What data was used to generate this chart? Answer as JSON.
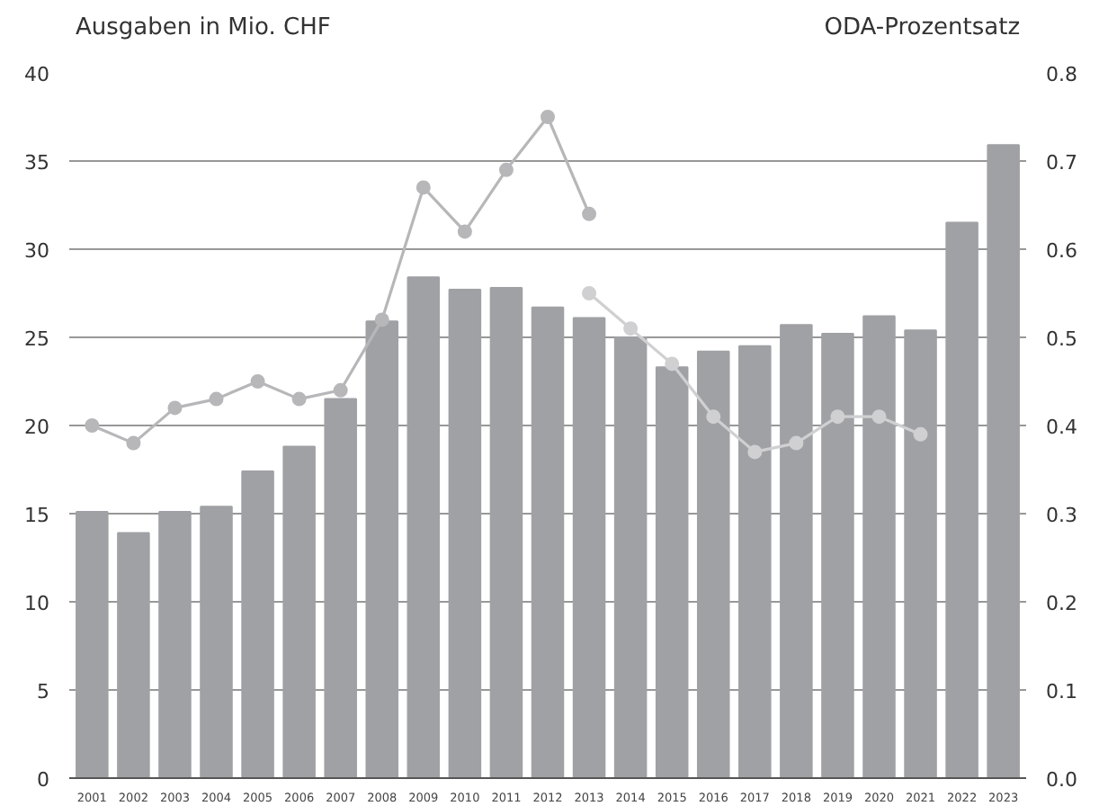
{
  "chart_data": {
    "type": "bar",
    "ylabel": "Ausgaben in Mio. CHF",
    "y2label": "ODA-Prozentsatz",
    "categories": [
      "2001",
      "2002",
      "2003",
      "2004",
      "2005",
      "2006",
      "2007",
      "2008",
      "2009",
      "2010",
      "2011",
      "2012",
      "2013",
      "2014",
      "2015",
      "2016",
      "2017",
      "2018",
      "2019",
      "2020",
      "2021",
      "2022",
      "2023"
    ],
    "series": [
      {
        "color": "#a0a1a5",
        "values": [
          15.1,
          13.9,
          15.1,
          15.4,
          17.4,
          18.8,
          21.5,
          25.9,
          28.4,
          27.7,
          27.8,
          26.7,
          26.1,
          25.0,
          23.3,
          24.2,
          24.5,
          25.7,
          25.2,
          26.2,
          25.4,
          31.5,
          35.9
        ]
      },
      {
        "type": "line",
        "axis": "y2",
        "color": "#b7b7ba",
        "values": [
          0.4,
          0.38,
          0.42,
          0.43,
          0.45,
          0.43,
          0.44,
          0.52,
          0.67,
          0.62,
          0.69,
          0.75,
          0.64,
          null,
          null,
          null,
          null,
          null,
          null,
          null,
          null,
          null,
          null
        ]
      },
      {
        "type": "line",
        "axis": "y2",
        "color": "#d0d0d2",
        "values": [
          null,
          null,
          null,
          null,
          null,
          null,
          null,
          null,
          null,
          null,
          null,
          null,
          0.55,
          0.51,
          0.47,
          0.41,
          0.37,
          0.38,
          0.41,
          0.41,
          0.39,
          null,
          null
        ]
      }
    ],
    "ylim": [
      0,
      40
    ],
    "yticks": [
      0,
      5,
      10,
      15,
      20,
      25,
      30,
      35,
      40
    ],
    "y2lim": [
      0,
      0.8
    ],
    "y2ticks": [
      {
        "value": 0,
        "label": "0.0"
      },
      0.1,
      0.2,
      0.3,
      0.4,
      0.5,
      0.6,
      0.7,
      0.8
    ],
    "grid": "y",
    "marker": "circle"
  }
}
